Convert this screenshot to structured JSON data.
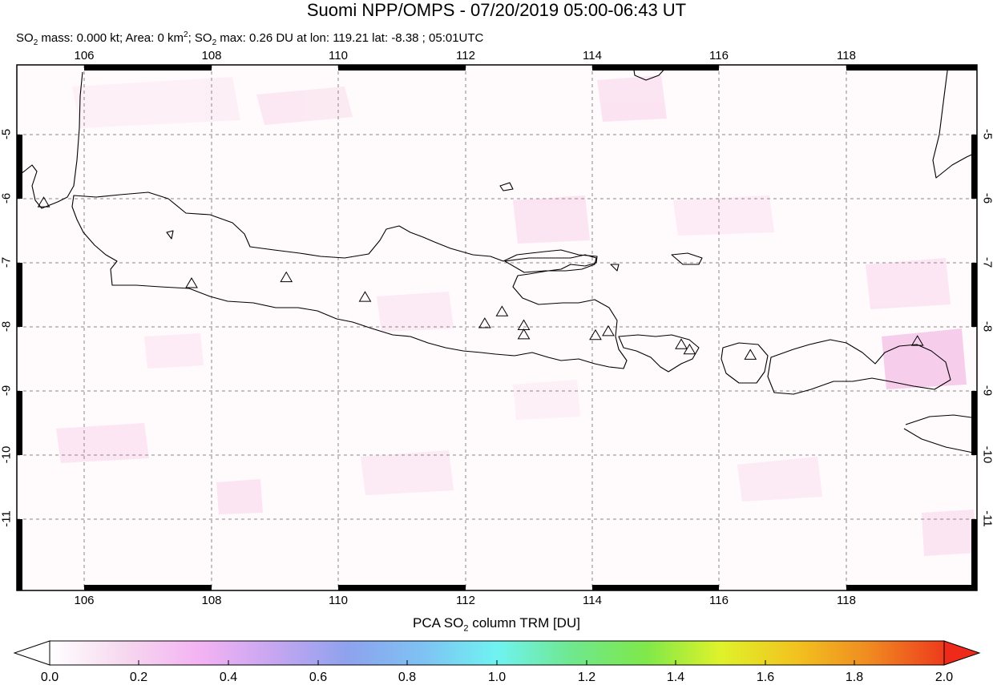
{
  "header": {
    "title": "Suomi NPP/OMPS - 07/20/2019 05:00-06:43 UT",
    "stats": {
      "so2_mass_prefix": "SO",
      "so2_mass_text": " mass: 0.000 kt; Area: 0 km",
      "so2_max_prefix": "; SO",
      "so2_max_text": " max: 0.26 DU at lon: 119.21 lat: -8.38 ; 05:01UTC"
    }
  },
  "map": {
    "lon_range": [
      105,
      120
    ],
    "lat_range": [
      -12,
      -4
    ],
    "lon_ticks": [
      "106",
      "108",
      "110",
      "112",
      "114",
      "116",
      "118"
    ],
    "lat_ticks": [
      "-5",
      "-6",
      "-7",
      "-8",
      "-9",
      "-10",
      "-11"
    ],
    "colors": {
      "frame": "#000000",
      "grid": "#888888",
      "coastline": "#000000",
      "so2_low": "#fde6f2",
      "so2_mid": "#f6c4ea"
    },
    "volcanoes": [
      {
        "lon": 105.42,
        "lat": -6.1
      },
      {
        "lon": 107.73,
        "lat": -7.33
      },
      {
        "lon": 109.21,
        "lat": -7.24
      },
      {
        "lon": 110.44,
        "lat": -7.54
      },
      {
        "lon": 112.31,
        "lat": -7.94
      },
      {
        "lon": 112.58,
        "lat": -7.76
      },
      {
        "lon": 112.92,
        "lat": -7.97
      },
      {
        "lon": 112.92,
        "lat": -8.11
      },
      {
        "lon": 114.04,
        "lat": -8.12
      },
      {
        "lon": 114.24,
        "lat": -8.06
      },
      {
        "lon": 115.38,
        "lat": -8.26
      },
      {
        "lon": 115.51,
        "lat": -8.34
      },
      {
        "lon": 116.46,
        "lat": -8.42
      },
      {
        "lon": 119.07,
        "lat": -8.21
      }
    ]
  },
  "colorbar": {
    "title_prefix": "PCA SO",
    "title_suffix": " column TRM [DU]",
    "labels": [
      "0.0",
      "0.2",
      "0.4",
      "0.6",
      "0.8",
      "1.0",
      "1.2",
      "1.4",
      "1.6",
      "1.8",
      "2.0"
    ],
    "stops": [
      "#ffffff",
      "#f6d8ef",
      "#f4b3f3",
      "#c7a6f1",
      "#8ea2ee",
      "#7ec2f3",
      "#6ff3f2",
      "#6fe88e",
      "#7fe84a",
      "#dff22a",
      "#f2c31f",
      "#f08a20",
      "#ee3b1c"
    ]
  }
}
